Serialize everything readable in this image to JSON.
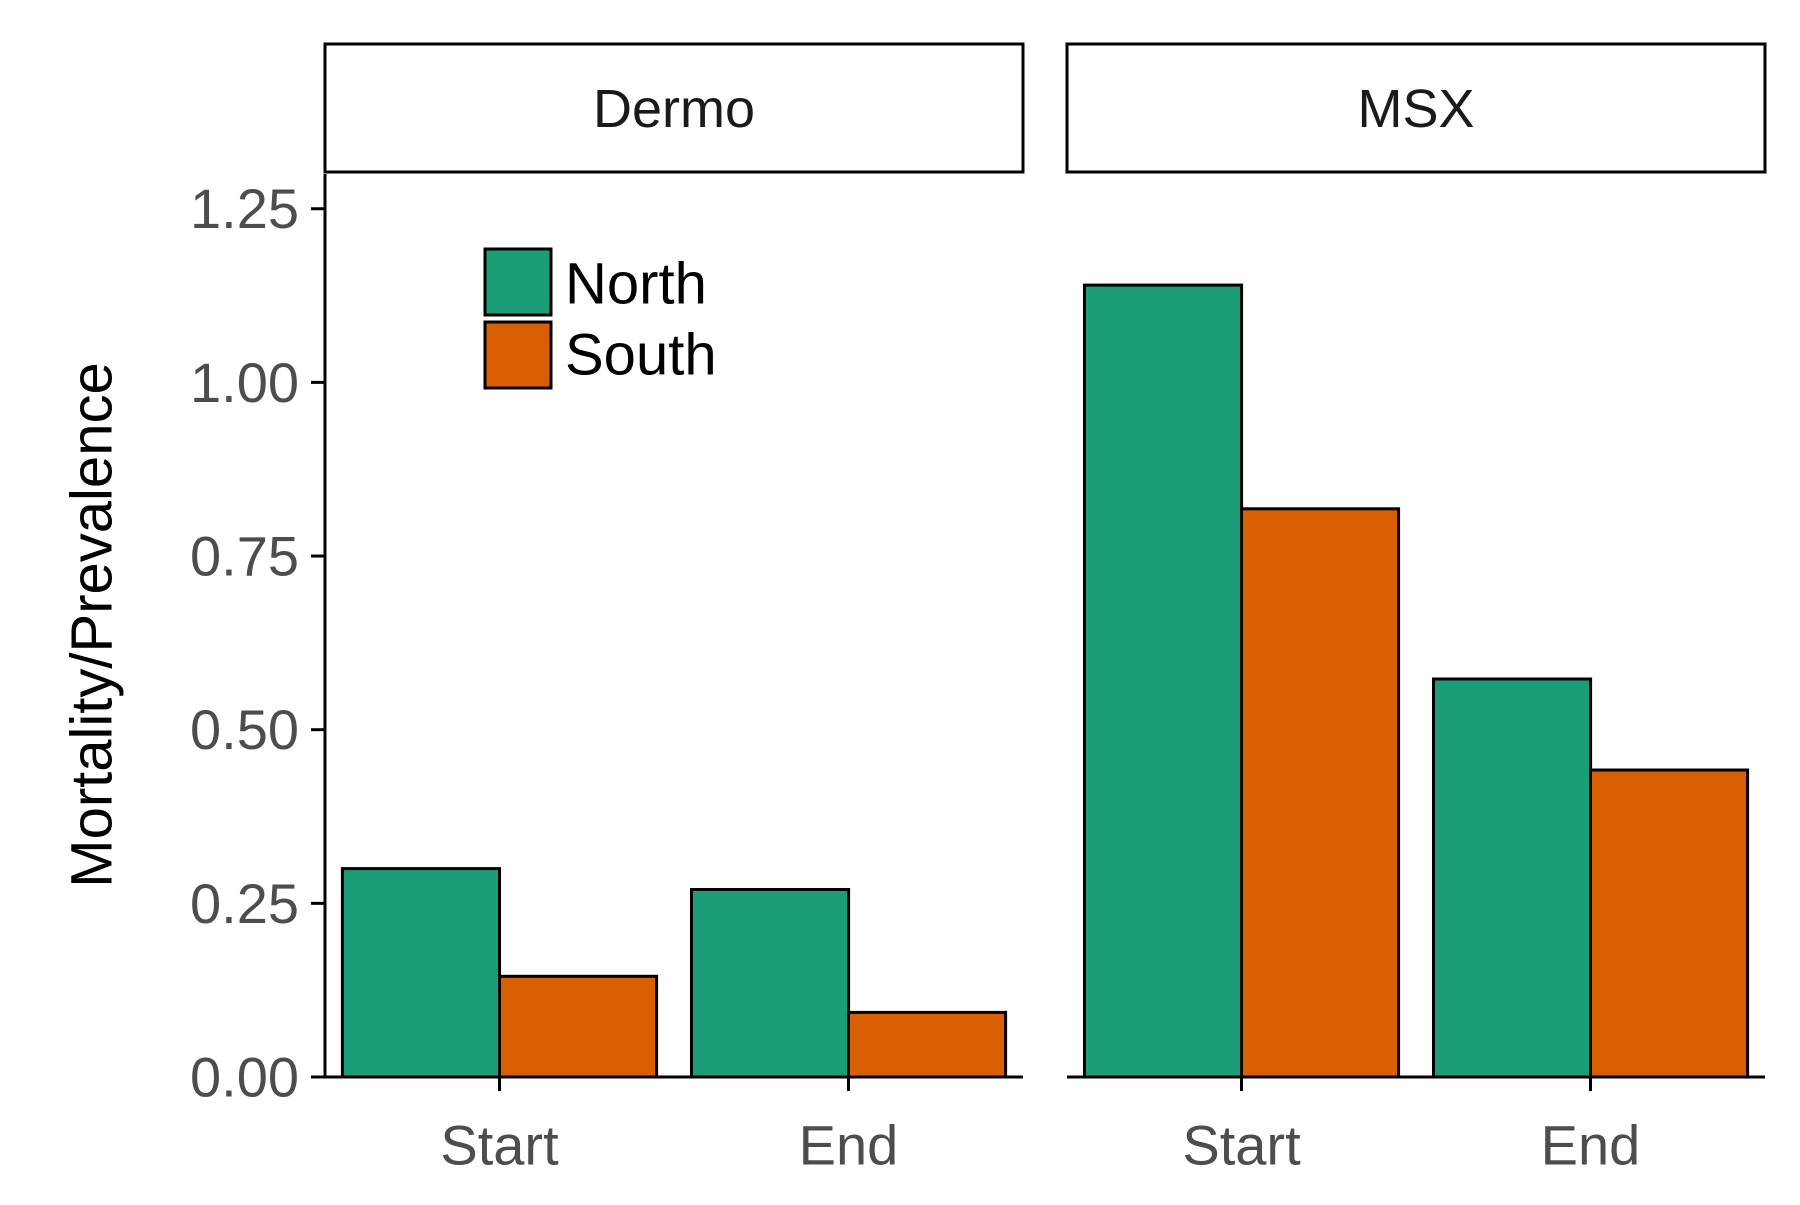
{
  "chart_data": {
    "type": "bar",
    "ylabel": "Mortality/Prevalence",
    "xlabel": "",
    "ylim": [
      0,
      1.3
    ],
    "yticks": [
      0,
      0.25,
      0.5,
      0.75,
      1.0,
      1.25
    ],
    "ytick_labels": [
      "0.00",
      "0.25",
      "0.50",
      "0.75",
      "1.00",
      "1.25"
    ],
    "categories": [
      "Start",
      "End"
    ],
    "legend": {
      "placement": "top-left inside first panel",
      "entries": [
        {
          "name": "North",
          "color": "#1b9e77"
        },
        {
          "name": "South",
          "color": "#d95f02"
        }
      ]
    },
    "facets": [
      {
        "title": "Dermo",
        "series": [
          {
            "name": "North",
            "values": [
              0.3,
              0.27
            ]
          },
          {
            "name": "South",
            "values": [
              0.145,
              0.093
            ]
          }
        ]
      },
      {
        "title": "MSX",
        "series": [
          {
            "name": "North",
            "values": [
              1.14,
              0.573
            ]
          },
          {
            "name": "South",
            "values": [
              0.818,
              0.442
            ]
          }
        ]
      }
    ],
    "grid": false
  },
  "colors": {
    "north": "#1b9e77",
    "south": "#d95f02",
    "axis": "#000000",
    "tick_text": "#4d4d4d"
  }
}
